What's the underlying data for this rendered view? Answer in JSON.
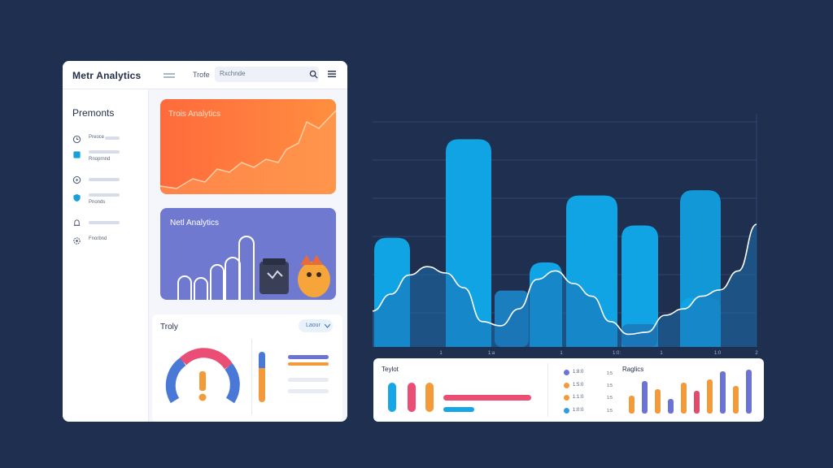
{
  "app": {
    "title": "Metr Analytics",
    "tab_label": "Trofe"
  },
  "search": {
    "value": "Rxchnde"
  },
  "sidebar": {
    "title": "Premonts",
    "items": [
      {
        "label": "Preoce",
        "icon": "clock-icon"
      },
      {
        "label": "Rnoprnnd",
        "icon": "square-icon"
      },
      {
        "label": "",
        "icon": "play-icon"
      },
      {
        "label": "Pnonds",
        "icon": "shield-icon"
      },
      {
        "label": "",
        "icon": "bell-icon"
      },
      {
        "label": "Fnorbnd",
        "icon": "gear-icon"
      }
    ]
  },
  "panels": {
    "orange_title": "Trois Analytics",
    "purple_title": "Netl Analytics",
    "bottom_title": "Troly",
    "dropdown_label": "Laour"
  },
  "chart_data": {
    "type": "bar",
    "bars": [
      62,
      118,
      48,
      86,
      69,
      28,
      89
    ],
    "secondary_bars": [
      32,
      13
    ],
    "line": [
      0.17,
      0.25,
      0.34,
      0.38,
      0.35,
      0.28,
      0.12,
      0.1,
      0.18,
      0.32,
      0.36,
      0.3,
      0.24,
      0.12,
      0.06,
      0.07,
      0.15,
      0.18,
      0.24,
      0.27,
      0.36,
      0.58
    ],
    "tick_labels": [
      "1",
      "1:a",
      "1",
      "1:0:",
      "1",
      "1:0",
      "2"
    ],
    "colors": {
      "bar": "#11a4e4",
      "bar_dark": "#1b7fbf",
      "line": "#ffffff"
    }
  },
  "info": {
    "left_title": "Teylot",
    "right_title": "Raglics",
    "legend": [
      "1:8:0",
      "1:5:0",
      "1:1:0",
      "1:0:0"
    ],
    "legend_side": [
      "1:5",
      "1:5",
      "1:5",
      "1:5"
    ],
    "legend_colors": [
      "#6b73d6",
      "#f39a3a",
      "#f39a3a",
      "#2f9ce0"
    ]
  },
  "mini_bars": [
    22,
    40,
    30,
    18,
    38,
    28,
    42,
    52,
    34,
    54
  ],
  "mini_bar_colors": [
    "#f39a3a",
    "#6b73d6",
    "#f39a3a",
    "#6b73d6",
    "#f39a3a",
    "#e24b6a",
    "#f39a3a",
    "#6b73d6",
    "#f39a3a",
    "#6b73d6"
  ]
}
